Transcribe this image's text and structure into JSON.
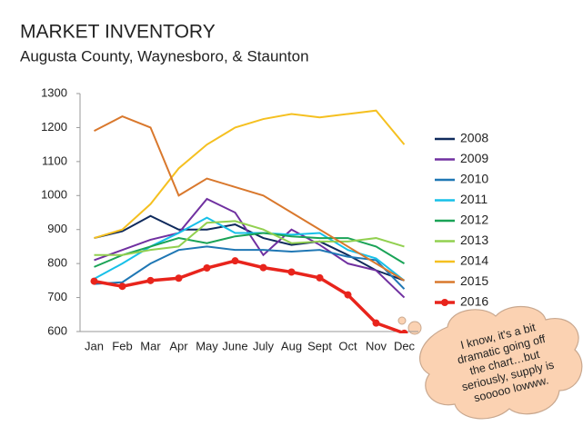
{
  "chart_data": {
    "type": "line",
    "title": "MARKET INVENTORY",
    "subtitle": "Augusta County, Waynesboro, & Staunton",
    "categories": [
      "Jan",
      "Feb",
      "Mar",
      "Apr",
      "May",
      "June",
      "July",
      "Aug",
      "Sept",
      "Oct",
      "Nov",
      "Dec"
    ],
    "series": [
      {
        "name": "2008",
        "color": "#0f2a5c",
        "values": [
          875,
          895,
          940,
          900,
          900,
          915,
          875,
          855,
          865,
          825,
          780,
          750
        ]
      },
      {
        "name": "2009",
        "color": "#7030a0",
        "values": [
          810,
          840,
          870,
          890,
          990,
          950,
          825,
          900,
          855,
          800,
          780,
          700
        ]
      },
      {
        "name": "2010",
        "color": "#1f77b4",
        "values": [
          740,
          745,
          800,
          840,
          850,
          840,
          840,
          835,
          840,
          820,
          810,
          725
        ]
      },
      {
        "name": "2011",
        "color": "#17c0e8",
        "values": [
          755,
          800,
          850,
          890,
          935,
          890,
          890,
          885,
          890,
          840,
          815,
          750
        ]
      },
      {
        "name": "2012",
        "color": "#1aa357",
        "values": [
          790,
          825,
          850,
          875,
          860,
          880,
          890,
          880,
          875,
          875,
          850,
          800
        ]
      },
      {
        "name": "2013",
        "color": "#92d050",
        "values": [
          825,
          825,
          840,
          850,
          920,
          925,
          900,
          860,
          865,
          865,
          875,
          850
        ]
      },
      {
        "name": "2014",
        "color": "#f5c020",
        "values": [
          875,
          900,
          975,
          1080,
          1150,
          1200,
          1225,
          1240,
          1230,
          1240,
          1250,
          1150
        ]
      },
      {
        "name": "2015",
        "color": "#d9782d",
        "values": [
          1190,
          1233,
          1200,
          1000,
          1050,
          1025,
          1000,
          950,
          900,
          850,
          800,
          750
        ]
      },
      {
        "name": "2016",
        "color": "#e8241c",
        "marker": true,
        "values": [
          748,
          733,
          750,
          757,
          787,
          808,
          788,
          775,
          758,
          708,
          625,
          595
        ]
      }
    ],
    "ylim": [
      600,
      1300
    ],
    "yticks": [
      600,
      700,
      800,
      900,
      1000,
      1100,
      1200,
      1300
    ],
    "grid": false,
    "legend": "right",
    "annotation": [
      "I know, it's a bit",
      "dramatic going off",
      "the chart…but",
      "seriously, supply is",
      "sooooo lowww."
    ]
  }
}
